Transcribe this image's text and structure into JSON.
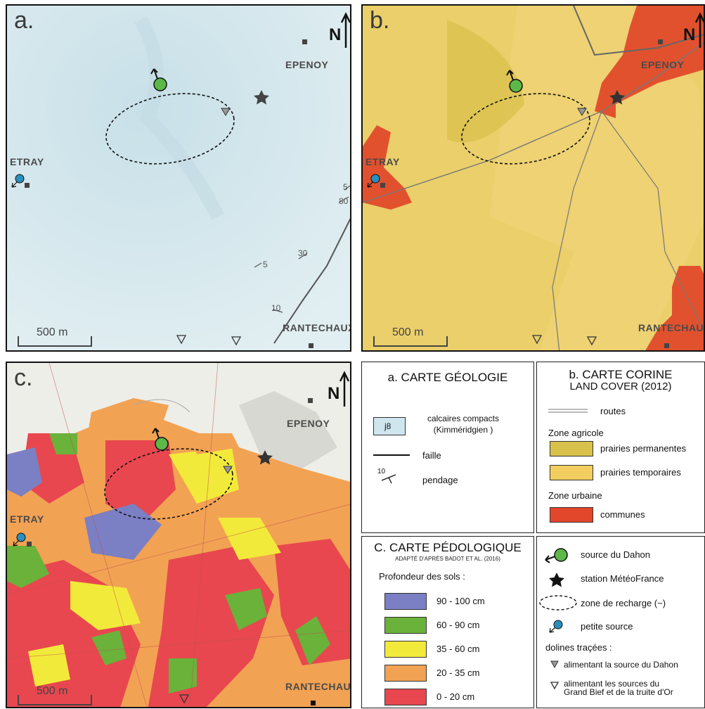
{
  "panels": {
    "a": {
      "letter": "a."
    },
    "b": {
      "letter": "b."
    },
    "c": {
      "letter": "c."
    }
  },
  "places": {
    "epenoy": "EPENOY",
    "etray": "ETRAY",
    "rantechaux": "RANTECHAUX"
  },
  "north": "N",
  "scale": "500 m",
  "dip_labels": [
    "5",
    "80",
    "30",
    "5",
    "10"
  ],
  "legend_a": {
    "title": "a. CARTE GÉOLOGIE",
    "j8_code": "j8",
    "j8_label": "calcaires compacts (Kimméridgien )",
    "fault": "faille",
    "dip_symbol_value": "10",
    "dip": "pendage",
    "color_j8": "#cfe6ef"
  },
  "legend_b": {
    "title_line1": "b. CARTE CORINE",
    "title_line2": "LAND COVER (2012)",
    "roads": "routes",
    "agri_zone": "Zone agricole",
    "permanent": "prairies permanentes",
    "temporary": "prairies temporaires",
    "urban_zone": "Zone urbaine",
    "communes": "communes",
    "color_permanent": "#d9c24c",
    "color_temporary": "#f2cd60",
    "color_communes": "#e2462b"
  },
  "legend_c": {
    "title": "C. CARTE PÉDOLOGIQUE",
    "subtitle": "ADAPTÉ D'APRÈS BADOT ET AL. (2016)",
    "depth_label": "Profondeur des sols :",
    "classes": [
      {
        "label": "90 - 100 cm",
        "color": "#7b7fc3"
      },
      {
        "label": "60 - 90 cm",
        "color": "#6ab23a"
      },
      {
        "label": "35 - 60 cm",
        "color": "#f2ea3a"
      },
      {
        "label": "20 - 35 cm",
        "color": "#f2a253"
      },
      {
        "label": "0 - 20 cm",
        "color": "#e8474f"
      }
    ]
  },
  "legend_symbols": {
    "dahon": "source du Dahon",
    "meteo": "station MétéoFrance",
    "recharge": "zone de recharge (~)",
    "small_source": "petite source",
    "dolines": "dolines traçées :",
    "doline_dahon": "alimentant la source du Dahon",
    "doline_other_1": "alimentant les sources du",
    "doline_other_2": "Grand Bief et de la truite d'Or"
  }
}
